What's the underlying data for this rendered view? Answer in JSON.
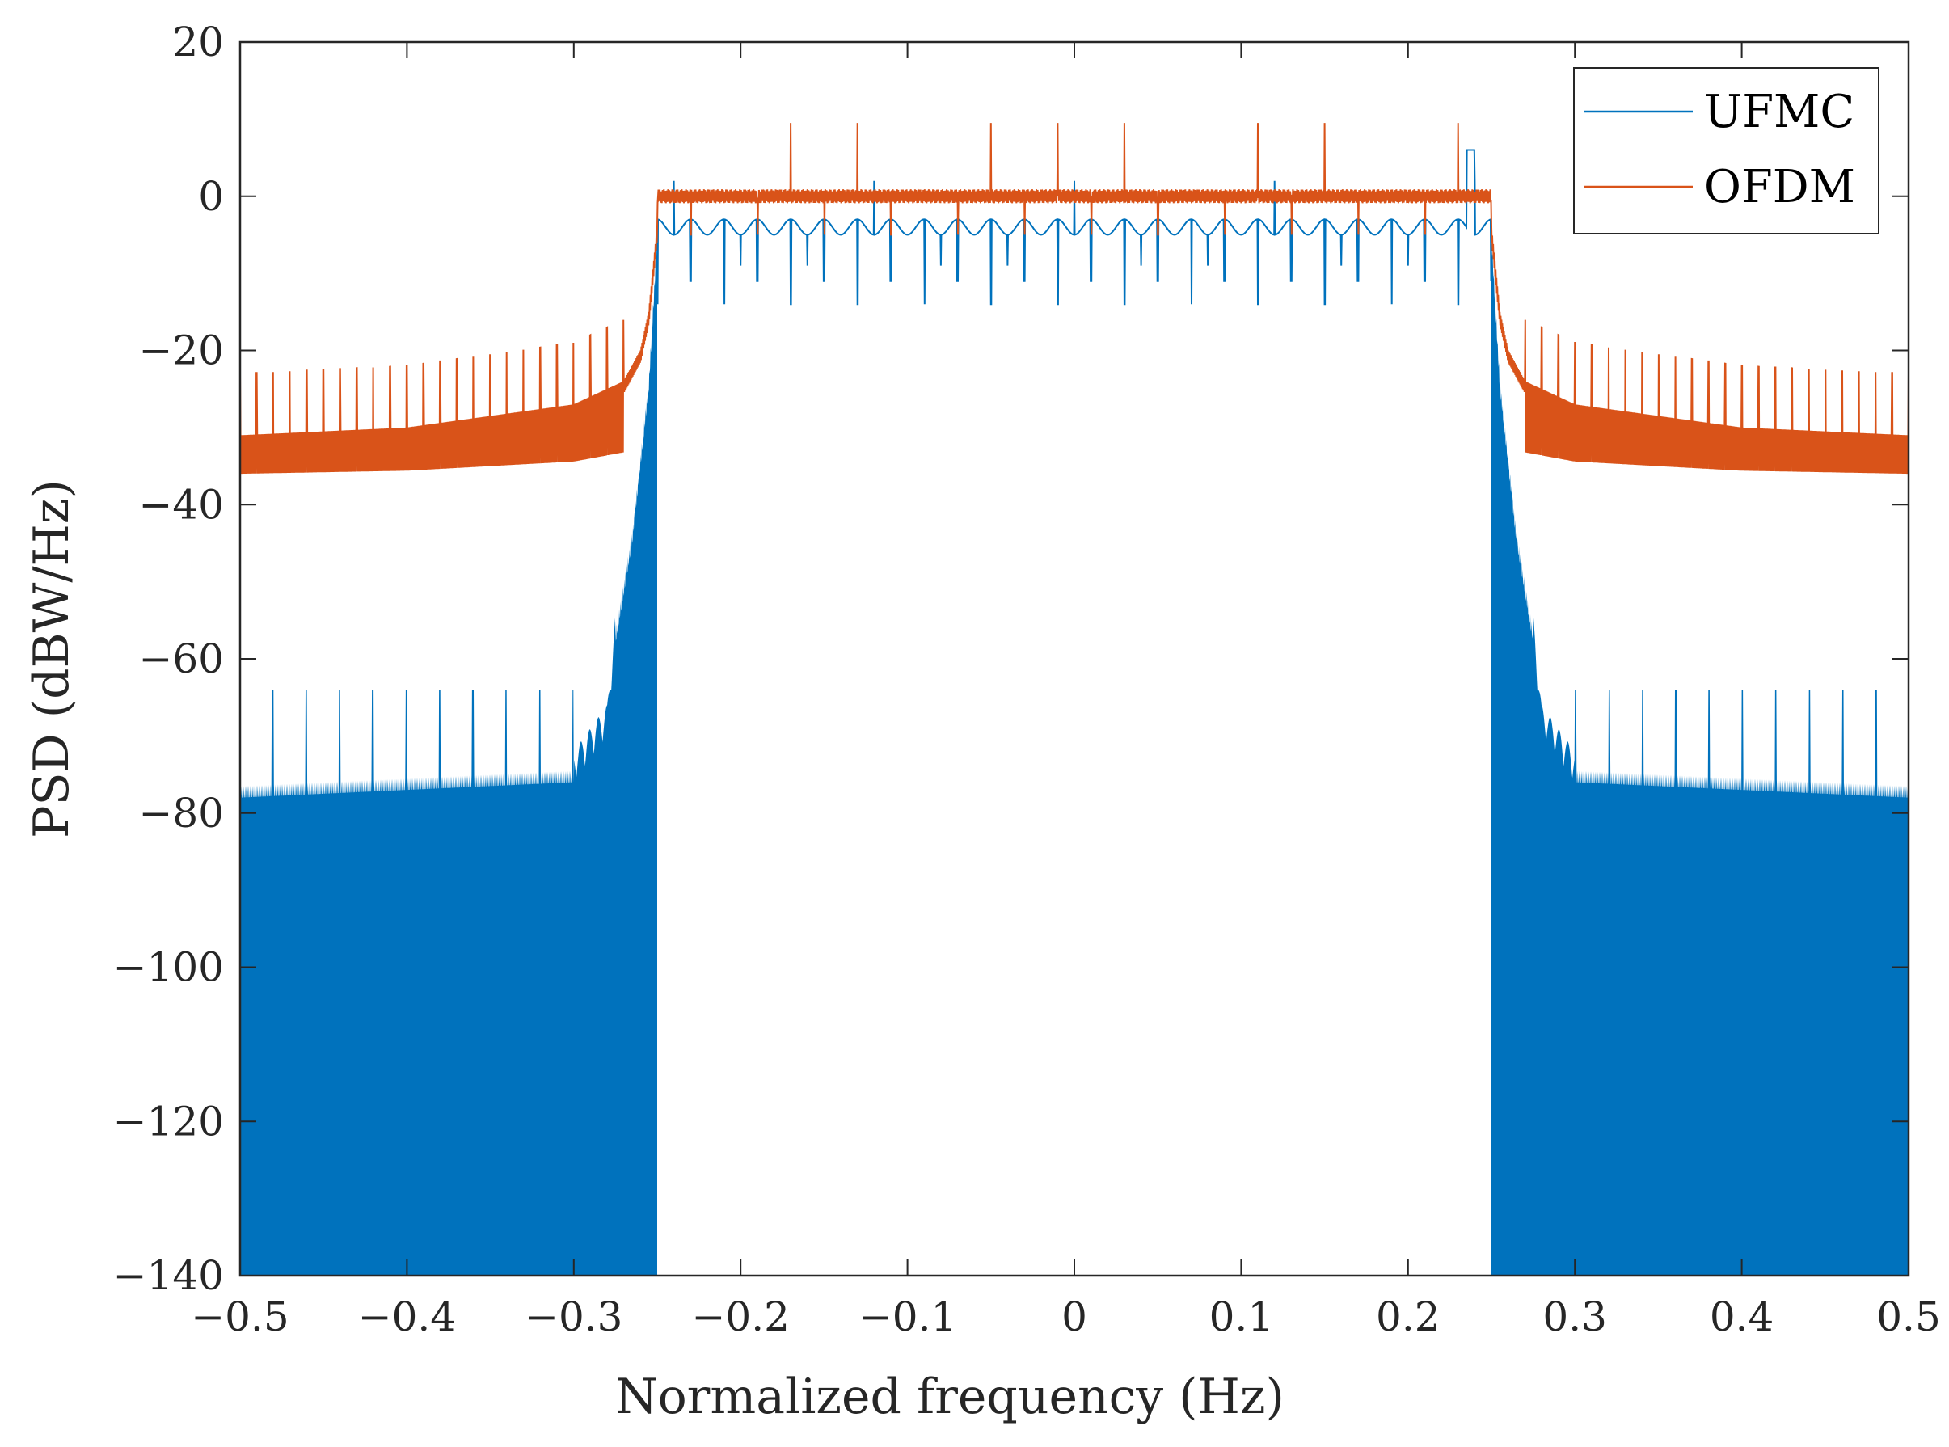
{
  "chart_data": {
    "type": "line",
    "title": "",
    "xlabel": "Normalized frequency (Hz)",
    "ylabel": "PSD (dBW/Hz)",
    "xlim": [
      -0.5,
      0.5
    ],
    "ylim": [
      -140,
      20
    ],
    "x_ticks": [
      -0.5,
      -0.4,
      -0.3,
      -0.2,
      -0.1,
      0,
      0.1,
      0.2,
      0.3,
      0.4,
      0.5
    ],
    "x_tick_labels": [
      "−0.5",
      "−0.4",
      "−0.3",
      "−0.2",
      "−0.1",
      "0",
      "0.1",
      "0.2",
      "0.3",
      "0.4",
      "0.5"
    ],
    "y_ticks": [
      20,
      0,
      -20,
      -40,
      -60,
      -80,
      -100,
      -120,
      -140
    ],
    "y_tick_labels": [
      "20",
      "0",
      "−20",
      "−40",
      "−60",
      "−80",
      "−100",
      "−120",
      "−140"
    ],
    "grid": false,
    "legend_position": "top-right",
    "series": [
      {
        "name": "UFMC",
        "color": "#0072BD",
        "passband": [
          -0.25,
          0.25
        ],
        "passband_level_db": -3,
        "passband_dip_db": -14,
        "passband_peak_db": 6,
        "outband_envelope_db": -78,
        "outband_floor_db": -140,
        "outband_spike_db": -64,
        "transition_edge": [
          [
            -0.5,
            -78
          ],
          [
            -0.3,
            -76
          ],
          [
            -0.28,
            -70
          ],
          [
            -0.275,
            -58
          ],
          [
            -0.265,
            -45
          ],
          [
            -0.255,
            -25
          ],
          [
            -0.25,
            -6
          ]
        ]
      },
      {
        "name": "OFDM",
        "color": "#D95319",
        "passband": [
          -0.25,
          0.25
        ],
        "passband_level_db": 0,
        "passband_spike_db": 9.5,
        "outband_band_db": [
          -36,
          -31
        ],
        "outband_spike_db": -23.5,
        "transition_edge": [
          [
            -0.5,
            -31
          ],
          [
            -0.4,
            -30
          ],
          [
            -0.3,
            -27
          ],
          [
            -0.27,
            -24
          ],
          [
            -0.26,
            -20
          ],
          [
            -0.255,
            -15
          ],
          [
            -0.25,
            -4
          ]
        ]
      }
    ]
  }
}
